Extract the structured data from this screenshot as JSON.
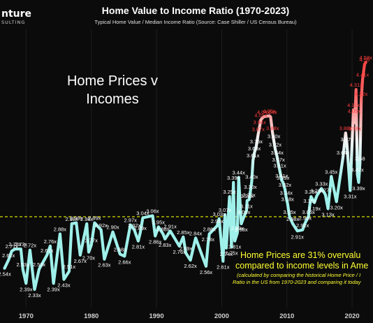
{
  "header": {
    "logo_text": "nture",
    "logo_sub": "SULTING"
  },
  "chart_data": {
    "type": "line",
    "title": "Home Value to Income Ratio (1970-2023)",
    "subtitle": "Typical Home Value / Median Income Ratio (Source: Case Shiller / US Census Bureau)",
    "xlabel": "",
    "ylabel": "",
    "xlim": [
      1966.0,
      2023.2
    ],
    "ylim": [
      2.15,
      4.92
    ],
    "grid": true,
    "legend": "none",
    "x_ticks": [
      1970,
      1980,
      1990,
      2000,
      2010,
      2020
    ],
    "reference_line": {
      "value": 3.05,
      "style": "dashed",
      "color": "#d7e000"
    },
    "line_color_low": "#9ff0ea",
    "line_color_high": "#ff2d2d",
    "points": [
      {
        "x": 1966.7,
        "y": 2.54,
        "label": "2.54x"
      },
      {
        "x": 1967.3,
        "y": 2.62,
        "label": "2.62x"
      },
      {
        "x": 1967.8,
        "y": 2.71,
        "label": "2.71x"
      },
      {
        "x": 1968.3,
        "y": 2.73,
        "label": "2.73x"
      },
      {
        "x": 1969.2,
        "y": 2.73,
        "label": "2.73x"
      },
      {
        "x": 1969.5,
        "y": 2.53,
        "label": "2.53x"
      },
      {
        "x": 1970.0,
        "y": 2.39,
        "label": "2.39x"
      },
      {
        "x": 1970.6,
        "y": 2.72,
        "label": "2.72x"
      },
      {
        "x": 1971.3,
        "y": 2.33,
        "label": "2.33x"
      },
      {
        "x": 1972.0,
        "y": 2.53,
        "label": "2.53x"
      },
      {
        "x": 1973.2,
        "y": 2.67,
        "label": "2.67x"
      },
      {
        "x": 1973.7,
        "y": 2.76,
        "label": "2.76x"
      },
      {
        "x": 1974.2,
        "y": 2.39,
        "label": "2.39x"
      },
      {
        "x": 1975.2,
        "y": 2.88,
        "label": "2.88x"
      },
      {
        "x": 1975.8,
        "y": 2.43,
        "label": "2.43x"
      },
      {
        "x": 1976.6,
        "y": 2.51,
        "label": "2.51x"
      },
      {
        "x": 1977.0,
        "y": 2.98,
        "label": "2.98x"
      },
      {
        "x": 1977.7,
        "y": 2.99,
        "label": "2.99x"
      },
      {
        "x": 1978.3,
        "y": 2.67,
        "label": "2.67x"
      },
      {
        "x": 1979.3,
        "y": 2.98,
        "label": "2.98x"
      },
      {
        "x": 1979.6,
        "y": 2.7,
        "label": "2.70x"
      },
      {
        "x": 1980.0,
        "y": 2.77,
        "label": "2.77x"
      },
      {
        "x": 1980.5,
        "y": 2.99,
        "label": "2.99x"
      },
      {
        "x": 1981.5,
        "y": 2.92,
        "label": "2.92x"
      },
      {
        "x": 1982.0,
        "y": 2.63,
        "label": "2.63x"
      },
      {
        "x": 1983.3,
        "y": 2.9,
        "label": "2.90x"
      },
      {
        "x": 1984.4,
        "y": 2.68,
        "label": "2.68x"
      },
      {
        "x": 1985.1,
        "y": 2.66,
        "label": "2.66x"
      },
      {
        "x": 1986.0,
        "y": 2.97,
        "label": "2.97x"
      },
      {
        "x": 1986.6,
        "y": 2.92,
        "label": "2.92x"
      },
      {
        "x": 1987.2,
        "y": 2.81,
        "label": "2.81x"
      },
      {
        "x": 1987.5,
        "y": 2.89,
        "label": "2.89x"
      },
      {
        "x": 1987.9,
        "y": 3.04,
        "label": "3.04x"
      },
      {
        "x": 1989.4,
        "y": 3.06,
        "label": "3.06x"
      },
      {
        "x": 1989.8,
        "y": 2.86,
        "label": "2.86x"
      },
      {
        "x": 1990.3,
        "y": 2.95,
        "label": "2.95x"
      },
      {
        "x": 1991.0,
        "y": 2.88,
        "label": "2.88x"
      },
      {
        "x": 1991.3,
        "y": 2.83,
        "label": "2.83x"
      },
      {
        "x": 1992.1,
        "y": 2.91,
        "label": "2.91x"
      },
      {
        "x": 1993.5,
        "y": 2.76,
        "label": "2.76x"
      },
      {
        "x": 1994.1,
        "y": 2.85,
        "label": "2.85x"
      },
      {
        "x": 1994.5,
        "y": 2.69,
        "label": "2.69x"
      },
      {
        "x": 1995.2,
        "y": 2.62,
        "label": "2.62x"
      },
      {
        "x": 1996.0,
        "y": 2.84,
        "label": "2.84x"
      },
      {
        "x": 1997.6,
        "y": 2.56,
        "label": "2.56x"
      },
      {
        "x": 1997.9,
        "y": 2.78,
        "label": "2.78x"
      },
      {
        "x": 1998.1,
        "y": 2.88,
        "label": "2.88x"
      },
      {
        "x": 1999.3,
        "y": 2.96,
        "label": "2.96x"
      },
      {
        "x": 1999.6,
        "y": 3.03,
        "label": "3.03x"
      },
      {
        "x": 2000.2,
        "y": 2.61,
        "label": "2.61x"
      },
      {
        "x": 2000.5,
        "y": 3.07,
        "label": "3.07x"
      },
      {
        "x": 2000.7,
        "y": 2.74,
        "label": "2.74x"
      },
      {
        "x": 2001.2,
        "y": 3.25,
        "label": "3.25x"
      },
      {
        "x": 2001.5,
        "y": 2.75,
        "label": "2.75x"
      },
      {
        "x": 2001.8,
        "y": 3.39,
        "label": "3.39x"
      },
      {
        "x": 2002.0,
        "y": 2.81,
        "label": "2.81x"
      },
      {
        "x": 2002.4,
        "y": 2.89,
        "label": "2.89x"
      },
      {
        "x": 2002.6,
        "y": 3.44,
        "label": "3.44x"
      },
      {
        "x": 2003.0,
        "y": 2.98,
        "label": "2.98x"
      },
      {
        "x": 2003.4,
        "y": 3.05,
        "label": "3.05x"
      },
      {
        "x": 2003.8,
        "y": 3.11,
        "label": "3.11x"
      },
      {
        "x": 2003.9,
        "y": 3.21,
        "label": "3.21x"
      },
      {
        "x": 2004.2,
        "y": 3.22,
        "label": "3.22x"
      },
      {
        "x": 2004.4,
        "y": 3.3,
        "label": "3.30x"
      },
      {
        "x": 2004.6,
        "y": 3.4,
        "label": "3.40x"
      },
      {
        "x": 2004.8,
        "y": 3.61,
        "label": "3.61x"
      },
      {
        "x": 2005.0,
        "y": 3.68,
        "label": "3.68x"
      },
      {
        "x": 2005.3,
        "y": 3.75,
        "label": "3.75x"
      },
      {
        "x": 2005.6,
        "y": 3.87,
        "label": "3.87x"
      },
      {
        "x": 2005.8,
        "y": 3.94,
        "label": "3.94x"
      },
      {
        "x": 2006.0,
        "y": 4.01,
        "label": "4.01x"
      },
      {
        "x": 2006.4,
        "y": 4.04,
        "label": "4.04x"
      },
      {
        "x": 2007.3,
        "y": 4.05,
        "label": "4.05x"
      },
      {
        "x": 2007.5,
        "y": 4.04,
        "label": "4.04x"
      },
      {
        "x": 2007.8,
        "y": 3.88,
        "label": "3.88x"
      },
      {
        "x": 2008.0,
        "y": 3.8,
        "label": "3.80x"
      },
      {
        "x": 2008.2,
        "y": 3.72,
        "label": "3.72x"
      },
      {
        "x": 2008.5,
        "y": 3.64,
        "label": "3.64x"
      },
      {
        "x": 2008.7,
        "y": 3.57,
        "label": "3.57x"
      },
      {
        "x": 2008.9,
        "y": 3.51,
        "label": "3.51x"
      },
      {
        "x": 2009.2,
        "y": 3.41,
        "label": "3.41x"
      },
      {
        "x": 2009.4,
        "y": 3.39,
        "label": "3.39x"
      },
      {
        "x": 2009.7,
        "y": 3.32,
        "label": "3.32x"
      },
      {
        "x": 2009.9,
        "y": 3.24,
        "label": "3.24x"
      },
      {
        "x": 2010.1,
        "y": 3.18,
        "label": "3.18x"
      },
      {
        "x": 2010.4,
        "y": 3.05,
        "label": "3.05x"
      },
      {
        "x": 2010.9,
        "y": 2.98,
        "label": "2.98x"
      },
      {
        "x": 2011.6,
        "y": 2.91,
        "label": "2.91x"
      },
      {
        "x": 2012.4,
        "y": 2.92,
        "label": "2.92x"
      },
      {
        "x": 2012.8,
        "y": 2.99,
        "label": "2.99x"
      },
      {
        "x": 2013.3,
        "y": 3.05,
        "label": "3.05x"
      },
      {
        "x": 2013.5,
        "y": 3.16,
        "label": "3.16x"
      },
      {
        "x": 2013.7,
        "y": 3.25,
        "label": "3.25x"
      },
      {
        "x": 2014.2,
        "y": 3.19,
        "label": "3.19x"
      },
      {
        "x": 2014.6,
        "y": 3.26,
        "label": "3.26x"
      },
      {
        "x": 2015.3,
        "y": 3.33,
        "label": "3.33x"
      },
      {
        "x": 2015.9,
        "y": 3.27,
        "label": "3.27x"
      },
      {
        "x": 2016.3,
        "y": 3.13,
        "label": "3.13x"
      },
      {
        "x": 2016.8,
        "y": 3.45,
        "label": "3.45x"
      },
      {
        "x": 2017.6,
        "y": 3.2,
        "label": "3.20x"
      },
      {
        "x": 2018.6,
        "y": 3.64,
        "label": "3.64x"
      },
      {
        "x": 2019.0,
        "y": 3.88,
        "label": "3.88x"
      },
      {
        "x": 2019.2,
        "y": 3.77,
        "label": "3.77x"
      },
      {
        "x": 2019.7,
        "y": 3.31,
        "label": "3.31x"
      },
      {
        "x": 2020.2,
        "y": 4.11,
        "label": "4.11x"
      },
      {
        "x": 2020.3,
        "y": 4.05,
        "label": "4.05x"
      },
      {
        "x": 2020.4,
        "y": 3.98,
        "label": "3.98x"
      },
      {
        "x": 2020.6,
        "y": 4.31,
        "label": "4.31x"
      },
      {
        "x": 2020.8,
        "y": 3.47,
        "label": "3.47x"
      },
      {
        "x": 2021.0,
        "y": 3.39,
        "label": "3.39x"
      },
      {
        "x": 2021.2,
        "y": 3.58,
        "label": "3.58"
      },
      {
        "x": 2021.4,
        "y": 4.22,
        "label": "4.22x"
      },
      {
        "x": 2021.6,
        "y": 4.41,
        "label": "4.41x"
      },
      {
        "x": 2021.9,
        "y": 4.56,
        "label": "4.56"
      },
      {
        "x": 2022.1,
        "y": 4.58,
        "label": "4.58x"
      }
    ],
    "annotations": {
      "heading_line1": "Home Prices v",
      "heading_line2": "Incomes",
      "callout_line1": "Home Prices are 31% overvalu",
      "callout_line2": "compared to income levels in Ame",
      "note_line1": "(calculated by comparing the historical Home Price / I",
      "note_line2": "Ratio in the US from 1970-2023 and comparing it today"
    },
    "colors": {
      "background": "#0b0b0b",
      "title": "#ffffff",
      "tick": "#d0d0d0",
      "label_low": "#ffffff",
      "label_high": "#ff3b3b",
      "callout": "#ffff33"
    }
  }
}
